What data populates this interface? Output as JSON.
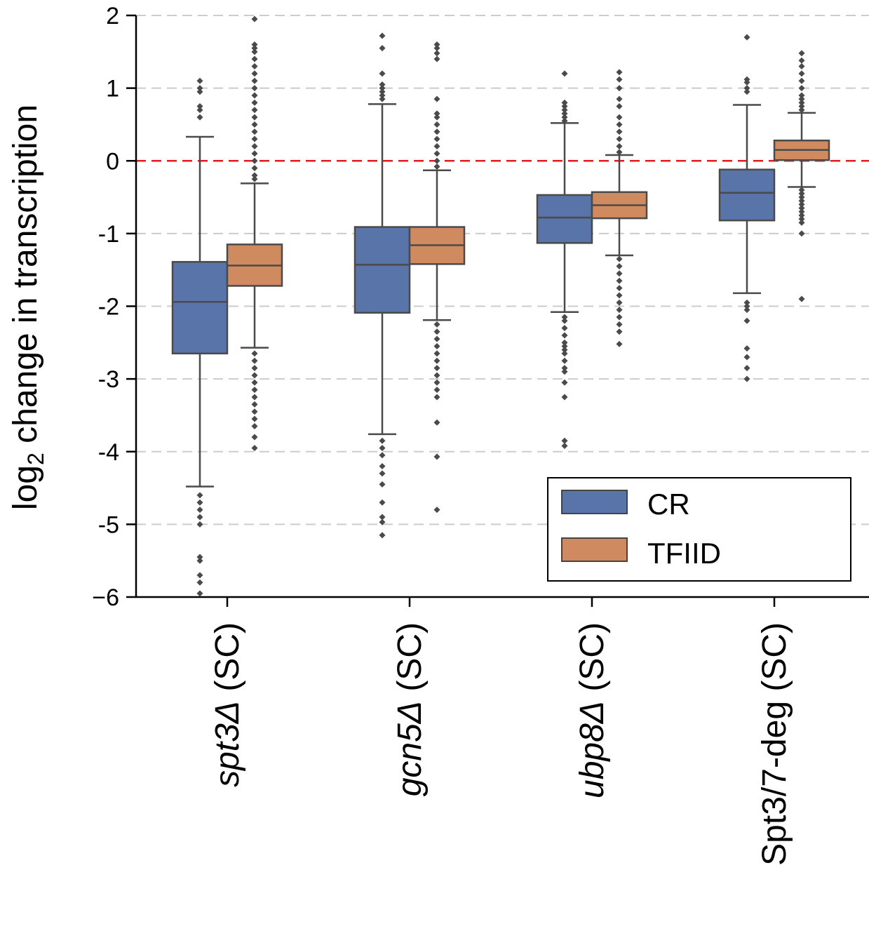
{
  "chart_data": {
    "type": "box",
    "ylabel_main": "log",
    "ylabel_sub": "2",
    "ylabel_rest": " change in transcription",
    "ylim": [
      -6,
      2
    ],
    "yticks": [
      2,
      1,
      0,
      -1,
      -2,
      -3,
      -4,
      -5,
      -6
    ],
    "ytick_labels": [
      "2",
      "1",
      "0",
      "-1",
      "-2",
      "-3",
      "-4",
      "-5",
      "−6"
    ],
    "grid": "horizontal dashed",
    "reference_line": {
      "y": 0,
      "color": "#e41a1c",
      "style": "dashed"
    },
    "categories": [
      {
        "italic": "spt3Δ",
        "plain": " (SC)"
      },
      {
        "italic": "gcn5Δ",
        "plain": " (SC)"
      },
      {
        "italic": "ubp8Δ",
        "plain": " (SC)"
      },
      {
        "italic": "",
        "plain": "Spt3/7-deg (SC)"
      }
    ],
    "series": [
      {
        "name": "CR",
        "color": "#5874a9",
        "boxes": [
          {
            "whislo": -4.48,
            "q1": -2.65,
            "med": -1.94,
            "q3": -1.39,
            "whishi": 0.33,
            "fliers": [
              0.6,
              0.7,
              0.75,
              0.95,
              1.0,
              1.1,
              -4.6,
              -4.7,
              -4.8,
              -4.9,
              -5.0,
              -5.45,
              -5.5,
              -5.7,
              -5.8,
              -5.95
            ]
          },
          {
            "whislo": -3.76,
            "q1": -2.09,
            "med": -1.43,
            "q3": -0.91,
            "whishi": 0.78,
            "fliers": [
              0.85,
              0.9,
              0.95,
              1.0,
              1.05,
              1.2,
              1.55,
              1.72,
              -3.85,
              -3.95,
              -4.05,
              -4.2,
              -4.3,
              -4.45,
              -4.7,
              -4.9,
              -4.97,
              -5.15
            ]
          },
          {
            "whislo": -2.08,
            "q1": -1.13,
            "med": -0.78,
            "q3": -0.47,
            "whishi": 0.52,
            "fliers": [
              0.55,
              0.6,
              0.65,
              0.7,
              0.75,
              0.8,
              1.2,
              -2.15,
              -2.2,
              -2.3,
              -2.4,
              -2.5,
              -2.55,
              -2.6,
              -2.65,
              -2.75,
              -2.85,
              -2.9,
              -3.05,
              -3.25,
              -3.85,
              -3.92
            ]
          },
          {
            "whislo": -1.82,
            "q1": -0.82,
            "med": -0.44,
            "q3": -0.12,
            "whishi": 0.77,
            "fliers": [
              0.95,
              1.0,
              1.08,
              1.12,
              1.7,
              -1.95,
              -2.0,
              -2.05,
              -2.2,
              -2.58,
              -2.7,
              -2.85,
              -3.0
            ]
          }
        ]
      },
      {
        "name": "TFIID",
        "color": "#d08a5f",
        "boxes": [
          {
            "whislo": -2.57,
            "q1": -1.72,
            "med": -1.44,
            "q3": -1.15,
            "whishi": -0.31,
            "fliers": [
              -0.25,
              -0.2,
              -0.1,
              0.0,
              0.1,
              0.2,
              0.3,
              0.4,
              0.5,
              0.6,
              0.7,
              0.8,
              0.9,
              1.0,
              1.1,
              1.2,
              1.3,
              1.4,
              1.5,
              1.55,
              1.6,
              1.95,
              -2.65,
              -2.75,
              -2.85,
              -2.95,
              -3.05,
              -3.15,
              -3.25,
              -3.35,
              -3.45,
              -3.55,
              -3.65,
              -3.8,
              -3.95
            ]
          },
          {
            "whislo": -2.19,
            "q1": -1.42,
            "med": -1.16,
            "q3": -0.91,
            "whishi": -0.13,
            "fliers": [
              -0.08,
              0.0,
              0.1,
              0.2,
              0.3,
              0.4,
              0.5,
              0.6,
              0.65,
              0.85,
              1.4,
              1.48,
              1.55,
              1.6,
              -2.25,
              -2.35,
              -2.45,
              -2.55,
              -2.65,
              -2.75,
              -2.85,
              -2.95,
              -3.05,
              -3.15,
              -3.25,
              -3.6,
              -4.07,
              -4.8
            ]
          },
          {
            "whislo": -1.3,
            "q1": -0.79,
            "med": -0.61,
            "q3": -0.43,
            "whishi": 0.08,
            "fliers": [
              0.12,
              0.2,
              0.3,
              0.4,
              0.5,
              0.6,
              0.75,
              0.85,
              1.0,
              1.12,
              1.22,
              -1.35,
              -1.45,
              -1.55,
              -1.65,
              -1.75,
              -1.85,
              -1.95,
              -2.05,
              -2.15,
              -2.25,
              -2.35,
              -2.52
            ]
          },
          {
            "whislo": -0.36,
            "q1": 0.01,
            "med": 0.15,
            "q3": 0.28,
            "whishi": 0.66,
            "fliers": [
              0.7,
              0.75,
              0.8,
              0.85,
              0.9,
              1.0,
              1.1,
              1.2,
              1.3,
              1.38,
              1.48,
              -0.4,
              -0.45,
              -0.5,
              -0.55,
              -0.6,
              -0.65,
              -0.7,
              -0.75,
              -0.8,
              -0.85,
              -1.0,
              -1.9
            ]
          }
        ]
      }
    ],
    "legend": {
      "placement": "lower-right",
      "entries": [
        "CR",
        "TFIID"
      ]
    }
  }
}
